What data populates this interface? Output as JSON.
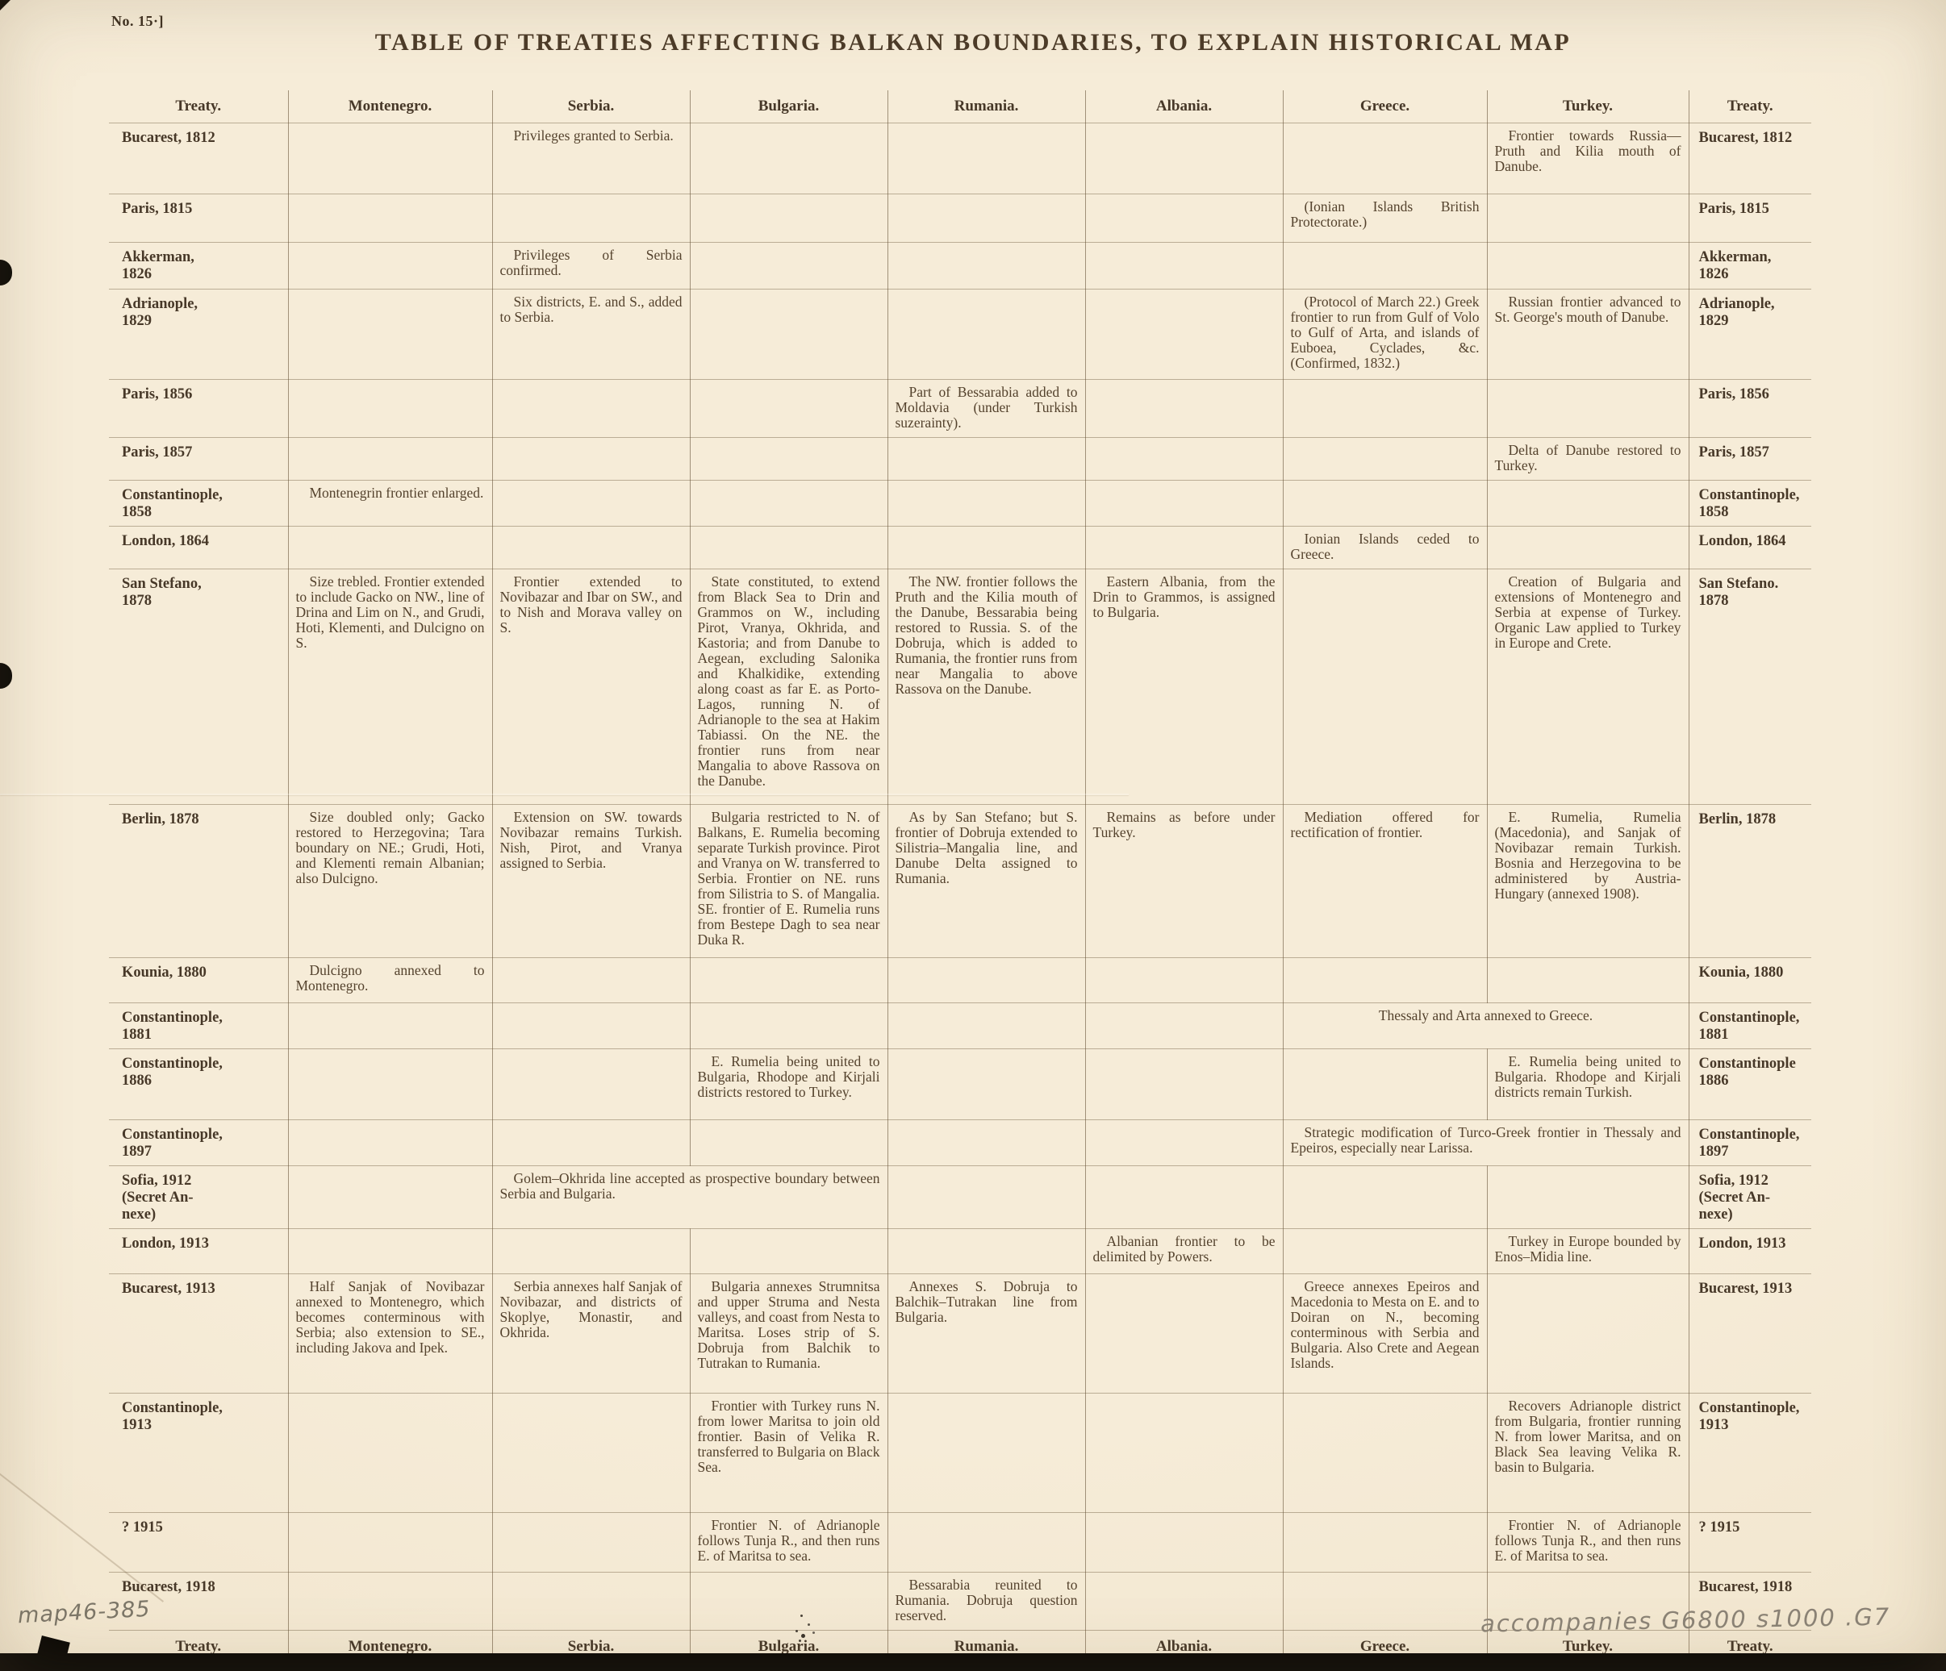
{
  "page": {
    "no_label": "No. 15·]",
    "title": "TABLE OF TREATIES AFFECTING BALKAN BOUNDARIES, TO EXPLAIN HISTORICAL MAP",
    "annotations": {
      "bottom_left": "map46-385",
      "bottom_right": "accompanies G6800 s1000 .G7"
    },
    "colors": {
      "paper": "#f4ead6",
      "ink": "#54422d",
      "rule": "#6f5940",
      "scan_edge": "#0b0906",
      "pencil": "#7c7668"
    }
  },
  "table": {
    "columns": [
      "Treaty.",
      "Montenegro.",
      "Serbia.",
      "Bulgaria.",
      "Rumania.",
      "Albania.",
      "Greece.",
      "Turkey.",
      "Treaty."
    ],
    "rows": [
      {
        "left": "Bucarest, 1812",
        "right": "Bucarest, 1812",
        "cells": [
          {
            "span": 1,
            "text": ""
          },
          {
            "span": 1,
            "text": "Privileges granted to Serbia."
          },
          {
            "span": 1,
            "text": ""
          },
          {
            "span": 1,
            "text": ""
          },
          {
            "span": 1,
            "text": ""
          },
          {
            "span": 1,
            "text": ""
          },
          {
            "span": 1,
            "text": "Frontier towards Russia—Pruth and Kilia mouth of Danube."
          }
        ]
      },
      {
        "left": "Paris, 1815",
        "right": "Paris, 1815",
        "cells": [
          {
            "span": 1,
            "text": ""
          },
          {
            "span": 1,
            "text": ""
          },
          {
            "span": 1,
            "text": ""
          },
          {
            "span": 1,
            "text": ""
          },
          {
            "span": 1,
            "text": ""
          },
          {
            "span": 1,
            "text": "(Ionian Islands British Protectorate.)"
          },
          {
            "span": 1,
            "text": ""
          }
        ]
      },
      {
        "left": "Akkerman,\n1826",
        "right": "Akkerman,\n1826",
        "cells": [
          {
            "span": 1,
            "text": ""
          },
          {
            "span": 1,
            "text": "Privileges of Serbia confirmed."
          },
          {
            "span": 1,
            "text": ""
          },
          {
            "span": 1,
            "text": ""
          },
          {
            "span": 1,
            "text": ""
          },
          {
            "span": 1,
            "text": ""
          },
          {
            "span": 1,
            "text": ""
          }
        ]
      },
      {
        "left": "Adrianople,\n1829",
        "right": "Adrianople,\n1829",
        "cells": [
          {
            "span": 1,
            "text": ""
          },
          {
            "span": 1,
            "text": "Six districts, E. and S., added to Serbia."
          },
          {
            "span": 1,
            "text": ""
          },
          {
            "span": 1,
            "text": ""
          },
          {
            "span": 1,
            "text": ""
          },
          {
            "span": 1,
            "text": "(Protocol of March 22.) Greek frontier to run from Gulf of Volo to Gulf of Arta, and islands of Euboea, Cyclades, &c. (Confirmed, 1832.)"
          },
          {
            "span": 1,
            "text": "Russian frontier advanced to St. George's mouth of Danube."
          }
        ]
      },
      {
        "left": "Paris, 1856",
        "right": "Paris, 1856",
        "cells": [
          {
            "span": 1,
            "text": ""
          },
          {
            "span": 1,
            "text": ""
          },
          {
            "span": 1,
            "text": ""
          },
          {
            "span": 1,
            "text": "Part of Bessarabia added to Moldavia (under Turkish suzerainty)."
          },
          {
            "span": 1,
            "text": ""
          },
          {
            "span": 1,
            "text": ""
          },
          {
            "span": 1,
            "text": ""
          }
        ]
      },
      {
        "left": "Paris, 1857",
        "right": "Paris, 1857",
        "cells": [
          {
            "span": 1,
            "text": ""
          },
          {
            "span": 1,
            "text": ""
          },
          {
            "span": 1,
            "text": ""
          },
          {
            "span": 1,
            "text": ""
          },
          {
            "span": 1,
            "text": ""
          },
          {
            "span": 1,
            "text": ""
          },
          {
            "span": 1,
            "text": "Delta of Danube restored to Turkey."
          }
        ]
      },
      {
        "left": "Constantinople,\n1858",
        "right": "Constantinople,\n1858",
        "cells": [
          {
            "span": 1,
            "text": "Montenegrin frontier enlarged."
          },
          {
            "span": 1,
            "text": ""
          },
          {
            "span": 1,
            "text": ""
          },
          {
            "span": 1,
            "text": ""
          },
          {
            "span": 1,
            "text": ""
          },
          {
            "span": 1,
            "text": ""
          },
          {
            "span": 1,
            "text": ""
          }
        ]
      },
      {
        "left": "London, 1864",
        "right": "London, 1864",
        "cells": [
          {
            "span": 1,
            "text": ""
          },
          {
            "span": 1,
            "text": ""
          },
          {
            "span": 1,
            "text": ""
          },
          {
            "span": 1,
            "text": ""
          },
          {
            "span": 1,
            "text": ""
          },
          {
            "span": 1,
            "text": "Ionian Islands ceded to Greece."
          },
          {
            "span": 1,
            "text": ""
          }
        ]
      },
      {
        "left": "San Stefano,\n1878",
        "right": "San Stefano.\n1878",
        "cells": [
          {
            "span": 1,
            "text": "Size trebled.  Frontier extended to include Gacko on NW., line of Drina and Lim on N., and Grudi, Hoti, Klementi, and Dulcigno on S."
          },
          {
            "span": 1,
            "text": "Frontier extended to Novibazar and Ibar on SW., and to Nish and Morava valley on S."
          },
          {
            "span": 1,
            "text": "State constituted, to extend from Black Sea to Drin and Grammos on W., including Pirot, Vranya, Okhrida, and Kastoria; and from Danube to Aegean, excluding Salonika and Khalkidike, extending along coast as far E. as Porto-Lagos, running N. of Adrianople to the sea at Hakim Tabiassi.  On the NE. the frontier runs from near Mangalia to above Rassova on the Danube."
          },
          {
            "span": 1,
            "text": "The NW. frontier follows the Pruth and the Kilia mouth of the Danube, Bessarabia being restored to Russia.  S. of the Dobruja, which is added to Rumania, the frontier runs from near Mangalia to above Rassova on the Danube."
          },
          {
            "span": 1,
            "text": "Eastern Albania, from the Drin to Grammos, is assigned to Bulgaria."
          },
          {
            "span": 1,
            "text": ""
          },
          {
            "span": 1,
            "text": "Creation of Bulgaria and extensions of Montenegro and Serbia at expense of Turkey.  Organic Law applied to Turkey in Europe and Crete."
          }
        ]
      },
      {
        "left": "Berlin, 1878",
        "right": "Berlin, 1878",
        "cells": [
          {
            "span": 1,
            "text": "Size doubled only; Gacko restored to Herzegovina; Tara boundary on NE.; Grudi, Hoti, and Klementi remain Albanian; also Dulcigno."
          },
          {
            "span": 1,
            "text": "Extension on SW. towards Novibazar remains Turkish. Nish, Pirot, and Vranya assigned to Serbia."
          },
          {
            "span": 1,
            "text": "Bulgaria restricted to N. of Balkans, E. Rumelia becoming separate Turkish province.  Pirot and Vranya on W. transferred to Serbia. Frontier on NE. runs from Silistria to S. of Mangalia. SE. frontier of E. Rumelia runs from Bestepe Dagh to sea near Duka R."
          },
          {
            "span": 1,
            "text": "As by San Stefano; but S. frontier of Dobruja extended to Silistria–Mangalia line, and Danube Delta assigned to Rumania."
          },
          {
            "span": 1,
            "text": "Remains as before under Turkey."
          },
          {
            "span": 1,
            "text": "Mediation offered for rectification of frontier."
          },
          {
            "span": 1,
            "text": "E. Rumelia, Rumelia (Macedonia), and Sanjak of Novibazar remain Turkish. Bosnia and Herzegovina to be administered by Austria-Hungary (annexed 1908)."
          }
        ]
      },
      {
        "left": "Kounia, 1880",
        "right": "Kounia, 1880",
        "cells": [
          {
            "span": 1,
            "text": "Dulcigno annexed to Montenegro."
          },
          {
            "span": 1,
            "text": ""
          },
          {
            "span": 1,
            "text": ""
          },
          {
            "span": 1,
            "text": ""
          },
          {
            "span": 1,
            "text": ""
          },
          {
            "span": 1,
            "text": ""
          },
          {
            "span": 1,
            "text": ""
          }
        ]
      },
      {
        "left": "Constantinople,\n1881",
        "right": "Constantinople,\n1881",
        "cells": [
          {
            "span": 1,
            "text": ""
          },
          {
            "span": 1,
            "text": ""
          },
          {
            "span": 1,
            "text": ""
          },
          {
            "span": 1,
            "text": ""
          },
          {
            "span": 1,
            "text": ""
          },
          {
            "span": 2,
            "text": "Thessaly and Arta annexed to Greece.",
            "align": "center"
          }
        ]
      },
      {
        "left": "Constantinople,\n1886",
        "right": "Constantinople\n1886",
        "cells": [
          {
            "span": 1,
            "text": ""
          },
          {
            "span": 1,
            "text": ""
          },
          {
            "span": 1,
            "text": "E. Rumelia being united to Bulgaria, Rhodope and Kirjali districts restored to Turkey."
          },
          {
            "span": 1,
            "text": ""
          },
          {
            "span": 1,
            "text": ""
          },
          {
            "span": 1,
            "text": ""
          },
          {
            "span": 1,
            "text": "E. Rumelia being united to Bulgaria.  Rhodope and Kirjali districts remain Turkish."
          }
        ]
      },
      {
        "left": "Constantinople,\n1897",
        "right": "Constantinople,\n1897",
        "cells": [
          {
            "span": 1,
            "text": ""
          },
          {
            "span": 1,
            "text": ""
          },
          {
            "span": 1,
            "text": ""
          },
          {
            "span": 1,
            "text": ""
          },
          {
            "span": 1,
            "text": ""
          },
          {
            "span": 2,
            "text": "Strategic modification of Turco-Greek frontier in Thessaly and Epeiros, especially near Larissa."
          }
        ]
      },
      {
        "left": "Sofia, 1912\n(Secret An-\nnexe)",
        "right": "Sofia, 1912\n(Secret An-\nnexe)",
        "cells": [
          {
            "span": 1,
            "text": ""
          },
          {
            "span": 2,
            "text": "Golem–Okhrida line accepted as prospective boundary between Serbia and Bulgaria."
          },
          {
            "span": 1,
            "text": ""
          },
          {
            "span": 1,
            "text": ""
          },
          {
            "span": 1,
            "text": ""
          },
          {
            "span": 1,
            "text": ""
          }
        ]
      },
      {
        "left": "London, 1913",
        "right": "London, 1913",
        "cells": [
          {
            "span": 1,
            "text": ""
          },
          {
            "span": 1,
            "text": ""
          },
          {
            "span": 1,
            "text": ""
          },
          {
            "span": 1,
            "text": ""
          },
          {
            "span": 1,
            "text": "Albanian frontier to be delimited by Powers."
          },
          {
            "span": 1,
            "text": ""
          },
          {
            "span": 1,
            "text": "Turkey in Europe bounded by Enos–Midia line."
          }
        ]
      },
      {
        "left": "Bucarest, 1913",
        "right": "Bucarest, 1913",
        "cells": [
          {
            "span": 1,
            "text": "Half Sanjak of Novibazar annexed to Montenegro, which becomes conterminous with Serbia; also extension to SE., including Jakova and Ipek."
          },
          {
            "span": 1,
            "text": "Serbia annexes half Sanjak of Novibazar, and districts of Skoplye, Monastir, and Okhrida."
          },
          {
            "span": 1,
            "text": "Bulgaria annexes Strumnitsa and upper Struma and Nesta valleys, and coast from Nesta to Maritsa. Loses strip of S. Dobruja from Balchik to Tutrakan to Rumania."
          },
          {
            "span": 1,
            "text": "Annexes S. Dobruja to Balchik–Tutrakan line from Bulgaria."
          },
          {
            "span": 1,
            "text": ""
          },
          {
            "span": 1,
            "text": "Greece annexes Epeiros and Macedonia to Mesta on E. and to Doiran on N., becoming conterminous with Serbia and Bulgaria.  Also Crete and Aegean Islands."
          },
          {
            "span": 1,
            "text": ""
          }
        ]
      },
      {
        "left": "Constantinople,\n1913",
        "right": "Constantinople,\n1913",
        "cells": [
          {
            "span": 1,
            "text": ""
          },
          {
            "span": 1,
            "text": ""
          },
          {
            "span": 1,
            "text": "Frontier with Turkey runs N. from lower Maritsa to join old frontier.  Basin of Velika R. transferred to Bulgaria on Black Sea."
          },
          {
            "span": 1,
            "text": ""
          },
          {
            "span": 1,
            "text": ""
          },
          {
            "span": 1,
            "text": ""
          },
          {
            "span": 1,
            "text": "Recovers Adrianople district from Bulgaria, frontier running N. from lower Maritsa, and on Black Sea leaving Velika R. basin to Bulgaria."
          }
        ]
      },
      {
        "left": "? 1915",
        "right": "? 1915",
        "cells": [
          {
            "span": 1,
            "text": ""
          },
          {
            "span": 1,
            "text": ""
          },
          {
            "span": 1,
            "text": "Frontier N. of Adrianople follows Tunja R., and then runs E. of Maritsa to sea."
          },
          {
            "span": 1,
            "text": ""
          },
          {
            "span": 1,
            "text": ""
          },
          {
            "span": 1,
            "text": ""
          },
          {
            "span": 1,
            "text": "Frontier N. of Adrianople follows Tunja R., and then runs E. of Maritsa to sea."
          }
        ]
      },
      {
        "left": "Bucarest, 1918",
        "right": "Bucarest, 1918",
        "cells": [
          {
            "span": 1,
            "text": ""
          },
          {
            "span": 1,
            "text": ""
          },
          {
            "span": 1,
            "text": ""
          },
          {
            "span": 1,
            "text": "Bessarabia reunited to Rumania. Dobruja question reserved."
          },
          {
            "span": 1,
            "text": ""
          },
          {
            "span": 1,
            "text": ""
          },
          {
            "span": 1,
            "text": ""
          }
        ]
      }
    ]
  }
}
